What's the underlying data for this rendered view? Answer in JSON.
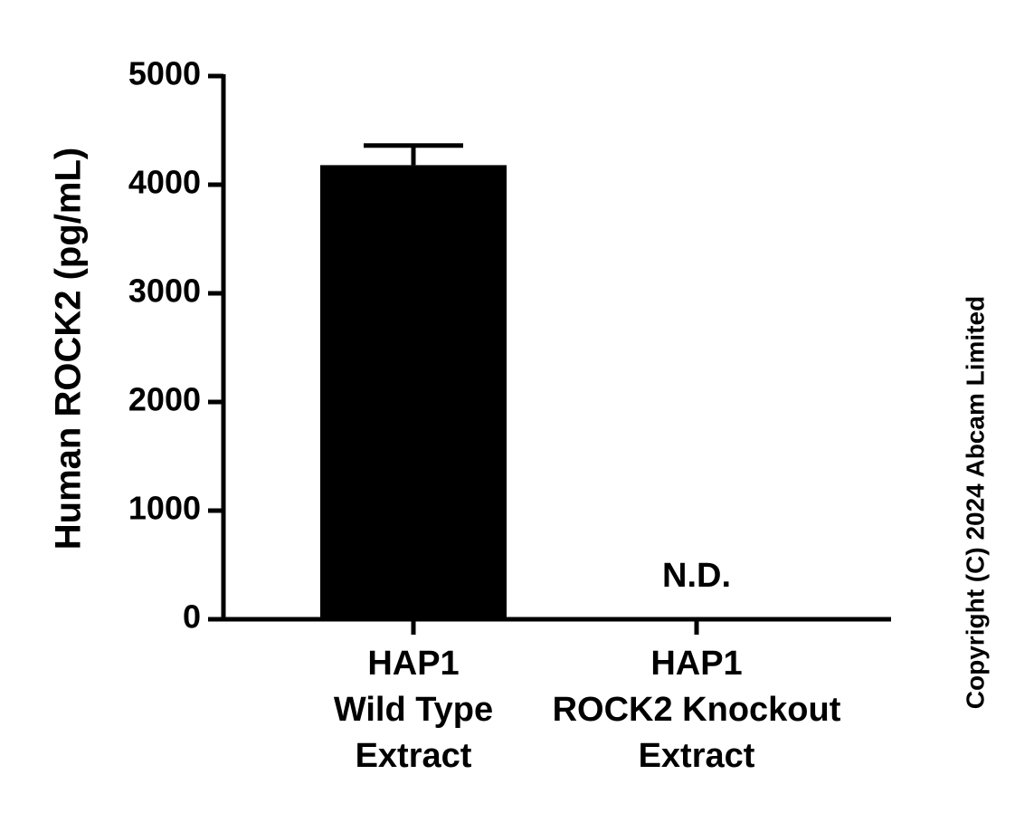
{
  "chart_data": {
    "type": "bar",
    "y_label": "Human ROCK2 (pg/mL)",
    "categories": [
      [
        "HAP1",
        "Wild Type",
        "Extract"
      ],
      [
        "HAP1",
        "ROCK2 Knockout",
        "Extract"
      ]
    ],
    "values": [
      4180,
      null
    ],
    "errors": [
      180,
      null
    ],
    "value_labels": [
      null,
      "N.D."
    ],
    "color": "#000000",
    "ylim": [
      0,
      5000
    ],
    "yticks": [
      0,
      1000,
      2000,
      3000,
      4000,
      5000
    ],
    "copyright": "Copyright (C) 2024 Abcam Limited"
  }
}
